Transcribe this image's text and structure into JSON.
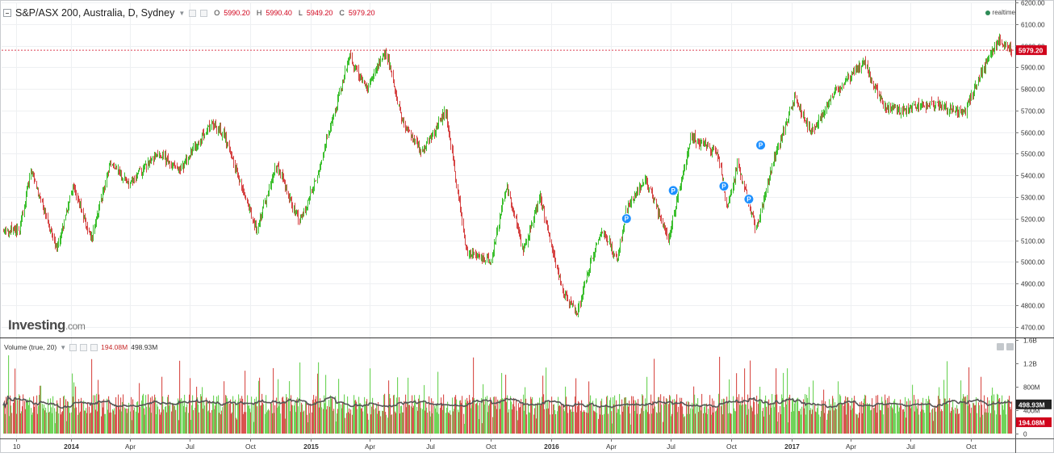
{
  "header": {
    "title": "S&P/ASX 200, Australia, D, Sydney",
    "open_label": "O",
    "open": "5990.20",
    "high_label": "H",
    "high": "5990.40",
    "low_label": "L",
    "low": "5949.20",
    "close_label": "C",
    "close": "5979.20",
    "realtime": "realtime"
  },
  "branding": {
    "logo_main": "Investing",
    "logo_suffix": ".com"
  },
  "volume": {
    "label": "Volume (true, 20)",
    "current": "194.08M",
    "ma": "498.93M"
  },
  "colors": {
    "up": "#3cbf2f",
    "down": "#d64545",
    "vol_up": "#6fd45a",
    "vol_down": "#d9534f",
    "ma": "#555555",
    "marker": "#1e90ff",
    "price_tag": "#d0021b",
    "grid": "#eef0f2"
  },
  "chart_data": [
    {
      "type": "candlestick",
      "title": "S&P/ASX 200, Australia, D, Sydney",
      "ylim": [
        4650,
        6200
      ],
      "y_ticks": [
        "6200.00",
        "6100.00",
        "6000.00",
        "5900.00",
        "5800.00",
        "5700.00",
        "5600.00",
        "5500.00",
        "5400.00",
        "5300.00",
        "5200.00",
        "5100.00",
        "5000.00",
        "4900.00",
        "4800.00",
        "4700.00"
      ],
      "x_ticks": [
        "10",
        "2014",
        "Apr",
        "Jul",
        "Oct",
        "2015",
        "Apr",
        "Jul",
        "Oct",
        "2016",
        "Apr",
        "Jul",
        "Oct",
        "2017",
        "Apr",
        "Jul",
        "Oct"
      ],
      "last_price": 5979.2,
      "last_price_label": "5979.20",
      "key_points": [
        {
          "x": "2013-10-15",
          "y": 5150
        },
        {
          "x": "2013-11-01",
          "y": 5420
        },
        {
          "x": "2013-12-10",
          "y": 5060
        },
        {
          "x": "2014-01-05",
          "y": 5350
        },
        {
          "x": "2014-02-01",
          "y": 5100
        },
        {
          "x": "2014-03-01",
          "y": 5450
        },
        {
          "x": "2014-04-01",
          "y": 5370
        },
        {
          "x": "2014-05-15",
          "y": 5500
        },
        {
          "x": "2014-06-15",
          "y": 5420
        },
        {
          "x": "2014-08-01",
          "y": 5640
        },
        {
          "x": "2014-08-20",
          "y": 5600
        },
        {
          "x": "2014-10-10",
          "y": 5150
        },
        {
          "x": "2014-11-10",
          "y": 5450
        },
        {
          "x": "2014-12-15",
          "y": 5180
        },
        {
          "x": "2015-01-10",
          "y": 5400
        },
        {
          "x": "2015-03-01",
          "y": 5950
        },
        {
          "x": "2015-03-25",
          "y": 5800
        },
        {
          "x": "2015-04-25",
          "y": 5970
        },
        {
          "x": "2015-05-20",
          "y": 5650
        },
        {
          "x": "2015-06-20",
          "y": 5500
        },
        {
          "x": "2015-07-25",
          "y": 5700
        },
        {
          "x": "2015-08-25",
          "y": 5050
        },
        {
          "x": "2015-10-01",
          "y": 5000
        },
        {
          "x": "2015-10-25",
          "y": 5350
        },
        {
          "x": "2015-11-20",
          "y": 5050
        },
        {
          "x": "2015-12-15",
          "y": 5300
        },
        {
          "x": "2016-01-20",
          "y": 4850
        },
        {
          "x": "2016-02-10",
          "y": 4760
        },
        {
          "x": "2016-03-01",
          "y": 5000
        },
        {
          "x": "2016-03-20",
          "y": 5150
        },
        {
          "x": "2016-04-10",
          "y": 5000
        },
        {
          "x": "2016-04-25",
          "y": 5250
        },
        {
          "x": "2016-05-25",
          "y": 5380
        },
        {
          "x": "2016-06-27",
          "y": 5100
        },
        {
          "x": "2016-08-01",
          "y": 5580
        },
        {
          "x": "2016-09-10",
          "y": 5500
        },
        {
          "x": "2016-09-25",
          "y": 5250
        },
        {
          "x": "2016-10-10",
          "y": 5450
        },
        {
          "x": "2016-11-08",
          "y": 5150
        },
        {
          "x": "2016-12-05",
          "y": 5480
        },
        {
          "x": "2017-01-05",
          "y": 5750
        },
        {
          "x": "2017-01-31",
          "y": 5600
        },
        {
          "x": "2017-03-01",
          "y": 5760
        },
        {
          "x": "2017-04-20",
          "y": 5930
        },
        {
          "x": "2017-05-20",
          "y": 5720
        },
        {
          "x": "2017-06-15",
          "y": 5700
        },
        {
          "x": "2017-08-01",
          "y": 5730
        },
        {
          "x": "2017-09-20",
          "y": 5690
        },
        {
          "x": "2017-10-20",
          "y": 5900
        },
        {
          "x": "2017-11-10",
          "y": 6030
        },
        {
          "x": "2017-11-30",
          "y": 5979
        }
      ],
      "markers": [
        {
          "x": "2016-04-25",
          "y": 5200,
          "label": "P"
        },
        {
          "x": "2016-07-05",
          "y": 5330,
          "label": "P"
        },
        {
          "x": "2016-09-20",
          "y": 5350,
          "label": "P"
        },
        {
          "x": "2016-10-28",
          "y": 5290,
          "label": "P"
        },
        {
          "x": "2016-11-15",
          "y": 5540,
          "label": "P"
        }
      ]
    },
    {
      "type": "bar",
      "title": "Volume (true, 20)",
      "ylim": [
        0,
        1600000000
      ],
      "y_ticks": [
        "1.6B",
        "1.2B",
        "800M",
        "400M",
        "0"
      ],
      "last_volume_label": "194.08M",
      "ma_label": "498.93M",
      "ma_value": 498930000
    }
  ]
}
